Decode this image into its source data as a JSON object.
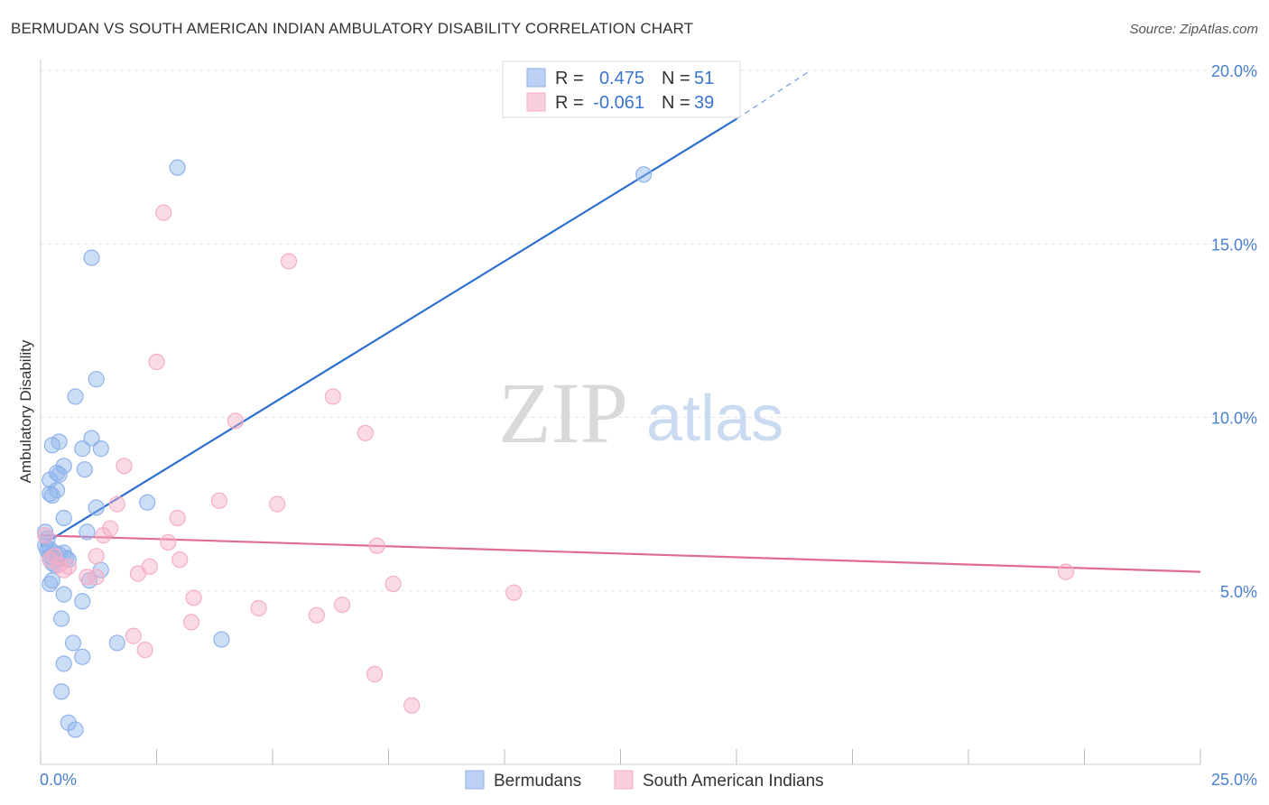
{
  "title": "BERMUDAN VS SOUTH AMERICAN INDIAN AMBULATORY DISABILITY CORRELATION CHART",
  "source": "Source: ZipAtlas.com",
  "watermark": {
    "zip": "ZIP",
    "atlas": "atlas"
  },
  "chart_data": {
    "type": "scatter",
    "ylabel": "Ambulatory Disability",
    "xlim": [
      0,
      25
    ],
    "ylim": [
      0,
      20
    ],
    "y_ticks": [
      {
        "value": 5,
        "label": "5.0%"
      },
      {
        "value": 10,
        "label": "10.0%"
      },
      {
        "value": 15,
        "label": "15.0%"
      },
      {
        "value": 20,
        "label": "20.0%"
      }
    ],
    "x_tick_labels": [
      {
        "value": 0,
        "label": "0.0%"
      },
      {
        "value": 25,
        "label": "25.0%"
      }
    ],
    "x_minor_ticks": [
      2.5,
      5,
      7.5,
      10,
      12.5,
      15,
      17.5,
      20,
      22.5
    ],
    "grid": true,
    "legend_position": "top-center",
    "series": [
      {
        "name": "Bermudans",
        "color": "#8fb3ec",
        "line_color": "#2f6fcf",
        "r_label": "R =",
        "r_value": "0.475",
        "n_label": "N =",
        "n_value": "51",
        "trend": {
          "x0": 0,
          "y0": 6.3,
          "x1": 15,
          "y1": 18.6,
          "dash_to_x": 16.6,
          "dash_to_y": 20.0
        },
        "points": [
          [
            0.1,
            6.7
          ],
          [
            0.1,
            6.3
          ],
          [
            0.15,
            6.5
          ],
          [
            0.2,
            6.2
          ],
          [
            0.2,
            6.0
          ],
          [
            0.25,
            5.8
          ],
          [
            0.3,
            6.1
          ],
          [
            0.35,
            5.9
          ],
          [
            0.4,
            6.05
          ],
          [
            0.5,
            6.1
          ],
          [
            0.55,
            5.95
          ],
          [
            0.6,
            5.9
          ],
          [
            0.2,
            8.2
          ],
          [
            0.2,
            7.8
          ],
          [
            0.25,
            7.75
          ],
          [
            0.35,
            7.9
          ],
          [
            0.25,
            9.2
          ],
          [
            0.4,
            9.3
          ],
          [
            0.35,
            8.4
          ],
          [
            0.4,
            8.35
          ],
          [
            0.5,
            8.6
          ],
          [
            0.95,
            8.5
          ],
          [
            0.9,
            9.1
          ],
          [
            1.1,
            9.4
          ],
          [
            1.3,
            9.1
          ],
          [
            0.75,
            10.6
          ],
          [
            1.2,
            11.1
          ],
          [
            1.1,
            14.6
          ],
          [
            2.95,
            17.2
          ],
          [
            13.0,
            17.0
          ],
          [
            0.5,
            7.1
          ],
          [
            1.0,
            6.7
          ],
          [
            1.2,
            7.4
          ],
          [
            2.3,
            7.55
          ],
          [
            0.2,
            5.2
          ],
          [
            0.25,
            5.3
          ],
          [
            0.5,
            4.9
          ],
          [
            0.9,
            4.7
          ],
          [
            1.05,
            5.3
          ],
          [
            1.3,
            5.6
          ],
          [
            0.45,
            4.2
          ],
          [
            0.7,
            3.5
          ],
          [
            0.9,
            3.1
          ],
          [
            1.65,
            3.5
          ],
          [
            3.9,
            3.6
          ],
          [
            0.5,
            2.9
          ],
          [
            0.45,
            2.1
          ],
          [
            0.6,
            1.2
          ],
          [
            0.75,
            1.0
          ],
          [
            0.15,
            6.15
          ],
          [
            0.3,
            5.75
          ]
        ]
      },
      {
        "name": "South American Indians",
        "color": "#f5aec6",
        "line_color": "#e06b95",
        "r_label": "R =",
        "r_value": "-0.061",
        "n_label": "N =",
        "n_value": "39",
        "trend": {
          "x0": 0,
          "y0": 6.6,
          "x1": 25,
          "y1": 5.55
        },
        "points": [
          [
            0.1,
            6.6
          ],
          [
            0.2,
            5.9
          ],
          [
            0.3,
            6.0
          ],
          [
            0.4,
            5.75
          ],
          [
            0.5,
            5.6
          ],
          [
            0.6,
            5.7
          ],
          [
            1.0,
            5.4
          ],
          [
            1.2,
            5.4
          ],
          [
            1.2,
            6.0
          ],
          [
            1.35,
            6.6
          ],
          [
            1.5,
            6.8
          ],
          [
            1.65,
            7.5
          ],
          [
            1.8,
            8.6
          ],
          [
            2.0,
            3.7
          ],
          [
            2.1,
            5.5
          ],
          [
            2.25,
            3.3
          ],
          [
            2.35,
            5.7
          ],
          [
            2.5,
            11.6
          ],
          [
            2.65,
            15.9
          ],
          [
            2.75,
            6.4
          ],
          [
            2.95,
            7.1
          ],
          [
            3.0,
            5.9
          ],
          [
            3.25,
            4.1
          ],
          [
            3.3,
            4.8
          ],
          [
            3.85,
            7.6
          ],
          [
            4.2,
            9.9
          ],
          [
            4.7,
            4.5
          ],
          [
            5.1,
            7.5
          ],
          [
            5.35,
            14.5
          ],
          [
            5.95,
            4.3
          ],
          [
            6.3,
            10.6
          ],
          [
            6.5,
            4.6
          ],
          [
            7.0,
            9.55
          ],
          [
            7.2,
            2.6
          ],
          [
            7.25,
            6.3
          ],
          [
            7.6,
            5.2
          ],
          [
            8.0,
            1.7
          ],
          [
            10.2,
            4.95
          ],
          [
            22.1,
            5.55
          ]
        ]
      }
    ]
  }
}
